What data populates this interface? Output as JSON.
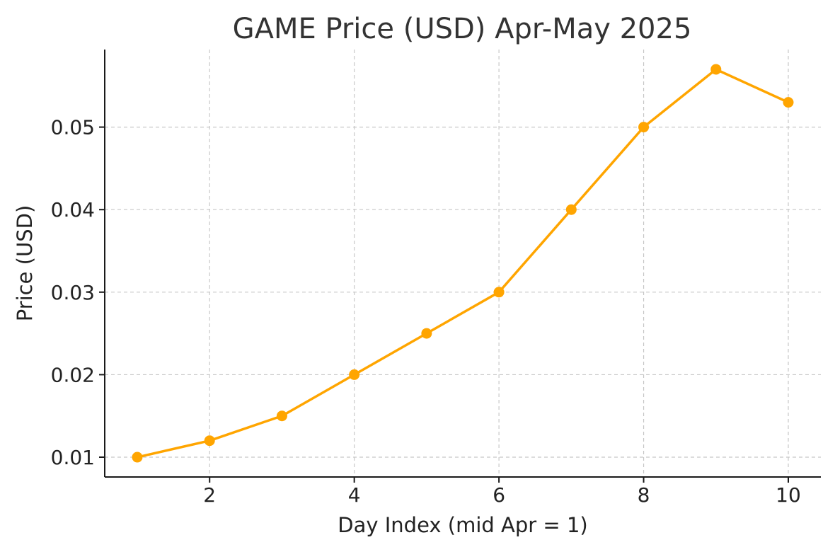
{
  "chart_data": {
    "type": "line",
    "title": "GAME Price (USD) Apr-May 2025",
    "xlabel": "Day Index (mid Apr = 1)",
    "ylabel": "Price (USD)",
    "xlim": [
      0.55,
      10.45
    ],
    "ylim": [
      0.0076,
      0.0594
    ],
    "xticks": [
      2,
      4,
      6,
      8,
      10
    ],
    "yticks": [
      0.01,
      0.02,
      0.03,
      0.04,
      0.05
    ],
    "ytick_labels": [
      "0.01",
      "0.02",
      "0.03",
      "0.04",
      "0.05"
    ],
    "grid": true,
    "series": [
      {
        "color": "#FFA500",
        "marker": "circle",
        "x": [
          1,
          2,
          3,
          4,
          5,
          6,
          7,
          8,
          9,
          10
        ],
        "values": [
          0.01,
          0.012,
          0.015,
          0.02,
          0.025,
          0.03,
          0.04,
          0.05,
          0.057,
          0.053
        ]
      }
    ]
  }
}
